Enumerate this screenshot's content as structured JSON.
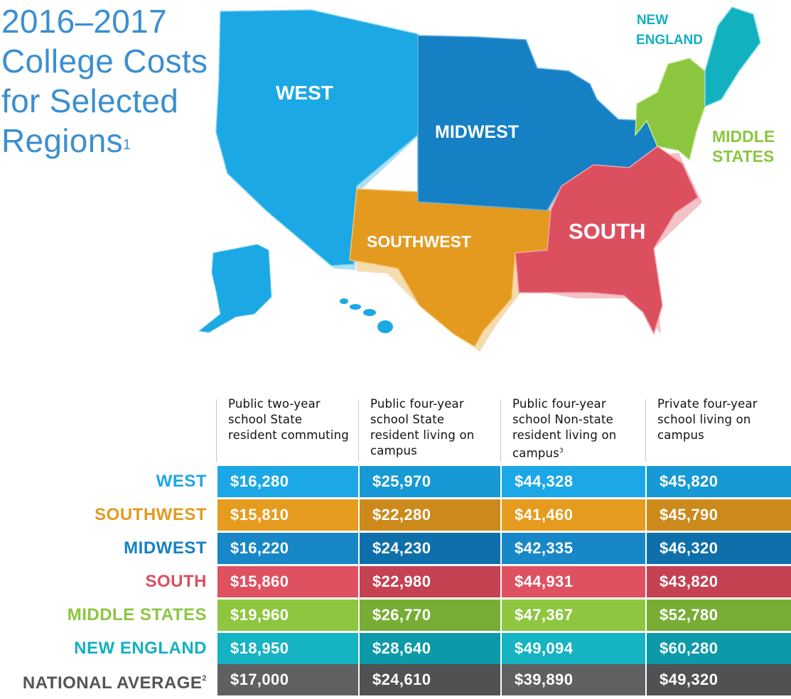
{
  "title": {
    "line1": "2016–2017",
    "line2": "College Costs",
    "line3": "for Selected",
    "line4": "Regions",
    "footnote": "1"
  },
  "map": {
    "labels": {
      "west": "WEST",
      "midwest": "MIDWEST",
      "southwest": "SOUTHWEST",
      "south": "SOUTH",
      "new_england_1": "NEW",
      "new_england_2": "ENGLAND",
      "middle_states_1": "MIDDLE",
      "middle_states_2": "STATES"
    },
    "colors": {
      "west": "#1ba8e5",
      "midwest": "#1580c4",
      "southwest": "#e39a1f",
      "south": "#dc4f5f",
      "middle_states": "#8cc63f",
      "new_england": "#12b1c0"
    }
  },
  "table": {
    "headers": [
      {
        "text": "Public two-year school State resident commuting",
        "footnote": ""
      },
      {
        "text": "Public four-year school State resident living on campus",
        "footnote": ""
      },
      {
        "text": "Public four-year school Non-state resident living on campus",
        "footnote": "3"
      },
      {
        "text": "Private four-year school living on campus",
        "footnote": ""
      }
    ],
    "rows": [
      {
        "label": "WEST",
        "footnote": "",
        "values": [
          "$16,280",
          "$25,970",
          "$44,328",
          "$45,820"
        ],
        "label_color": "#1ba8e5",
        "colors": [
          "#1ca8e6",
          "#1699d4",
          "#1ca8e6",
          "#1699d4"
        ]
      },
      {
        "label": "SOUTHWEST",
        "footnote": "",
        "values": [
          "$15,810",
          "$22,280",
          "$41,460",
          "$45,790"
        ],
        "label_color": "#e39a1f",
        "colors": [
          "#e59c1e",
          "#cc8a1c",
          "#e59c1e",
          "#cc8a1c"
        ]
      },
      {
        "label": "MIDWEST",
        "footnote": "",
        "values": [
          "$16,220",
          "$24,230",
          "$42,335",
          "$46,320"
        ],
        "label_color": "#1580c4",
        "colors": [
          "#1787c8",
          "#0e6fab",
          "#1787c8",
          "#0e6fab"
        ]
      },
      {
        "label": "SOUTH",
        "footnote": "",
        "values": [
          "$15,860",
          "$22,980",
          "$44,931",
          "$43,820"
        ],
        "label_color": "#dc4f5f",
        "colors": [
          "#de5161",
          "#c44252",
          "#de5161",
          "#c44252"
        ]
      },
      {
        "label": "MIDDLE STATES",
        "footnote": "",
        "values": [
          "$19,960",
          "$26,770",
          "$47,367",
          "$52,780"
        ],
        "label_color": "#8cc63f",
        "colors": [
          "#8ec640",
          "#77ad34",
          "#8ec640",
          "#77ad34"
        ]
      },
      {
        "label": "NEW ENGLAND",
        "footnote": "",
        "values": [
          "$18,950",
          "$28,640",
          "$49,094",
          "$60,280"
        ],
        "label_color": "#12b1c0",
        "colors": [
          "#16b3c2",
          "#0c9aa8",
          "#16b3c2",
          "#0c9aa8"
        ]
      },
      {
        "label": "NATIONAL AVERAGE",
        "footnote": "2",
        "values": [
          "$17,000",
          "$24,610",
          "$39,890",
          "$49,320"
        ],
        "label_color": "#555555",
        "colors": [
          "#5f6062",
          "#505153",
          "#5f6062",
          "#505153"
        ]
      }
    ]
  }
}
